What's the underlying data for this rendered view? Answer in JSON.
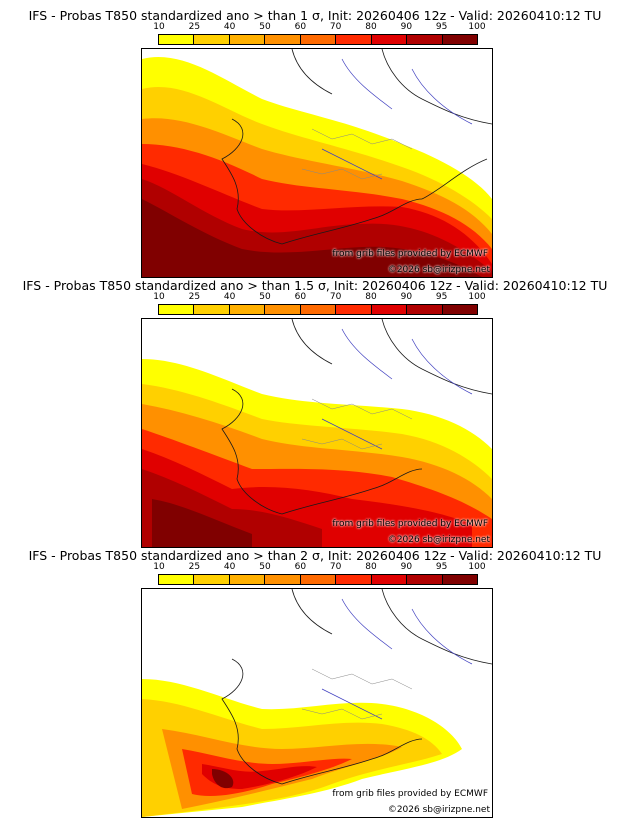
{
  "colorbar": {
    "ticks": [
      "10",
      "25",
      "40",
      "50",
      "60",
      "70",
      "80",
      "90",
      "95",
      "100"
    ],
    "colors": [
      "#ffff00",
      "#ffd000",
      "#ffb000",
      "#ff9000",
      "#ff6a00",
      "#ff2a00",
      "#e00000",
      "#b00000",
      "#800000"
    ]
  },
  "panels": [
    {
      "title": "IFS - Probas T850  standardized ano > than 1 σ, Init: 20260406 12z - Valid: 20260410:12 TU"
    },
    {
      "title": "IFS - Probas T850  standardized ano > than 1.5 σ, Init: 20260406 12z - Valid: 20260410:12 TU"
    },
    {
      "title": "IFS - Probas T850  standardized ano > than 2 σ, Init: 20260406 12z - Valid: 20260410:12 TU"
    }
  ],
  "credits": {
    "source": "from grib files provided by ECMWF",
    "copyright": "©2026 sb@irizpne.net"
  }
}
